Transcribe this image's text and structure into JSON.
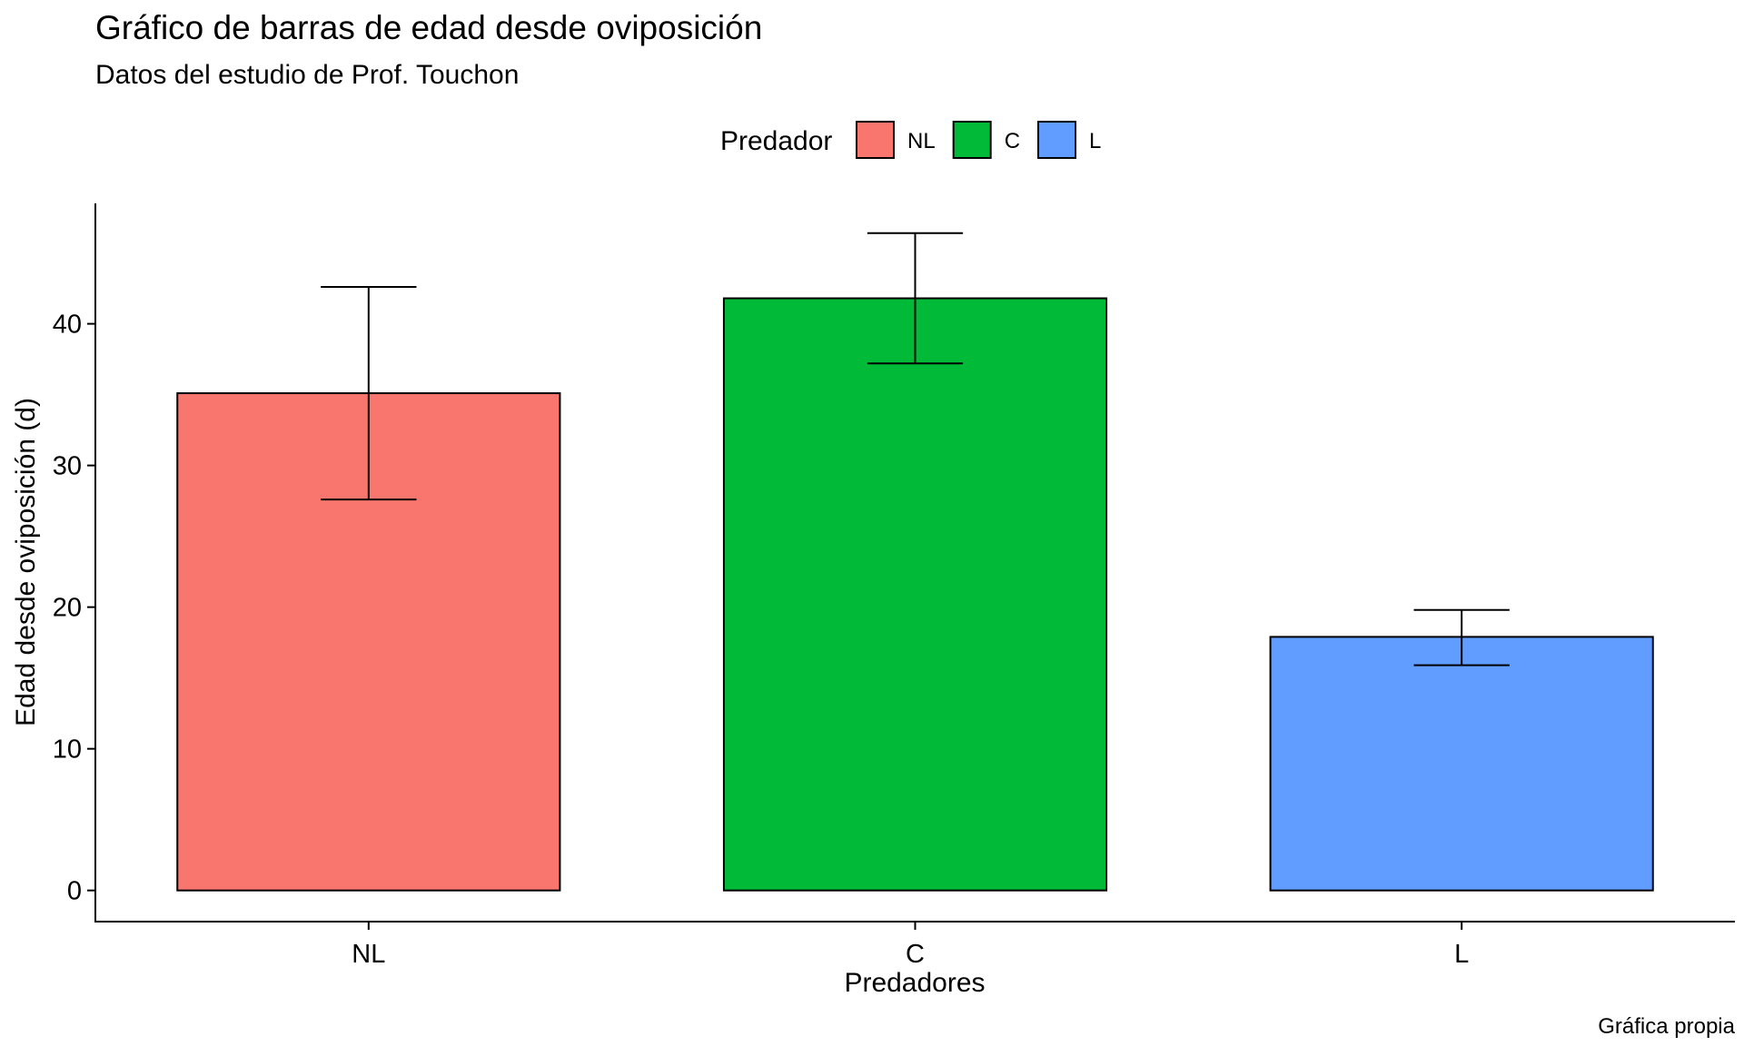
{
  "chart_data": {
    "type": "bar",
    "title": "Gráfico de barras de edad desde oviposición",
    "subtitle": "Datos del estudio de Prof. Touchon",
    "caption": "Gráfica propia",
    "xlabel": "Predadores",
    "ylabel": "Edad desde oviposición (d)",
    "categories": [
      "NL",
      "C",
      "L"
    ],
    "values": [
      35.1,
      41.8,
      17.9
    ],
    "error_low": [
      27.6,
      37.2,
      15.9
    ],
    "error_high": [
      42.6,
      46.4,
      19.8
    ],
    "colors": [
      "#F8766D",
      "#00BA38",
      "#619CFF"
    ],
    "ylim": [
      -2.2,
      48.5
    ],
    "yticks": [
      0,
      10,
      20,
      30,
      40
    ],
    "grid": false,
    "legend": {
      "title": "Predador",
      "position": "top",
      "entries": [
        "NL",
        "C",
        "L"
      ]
    }
  }
}
